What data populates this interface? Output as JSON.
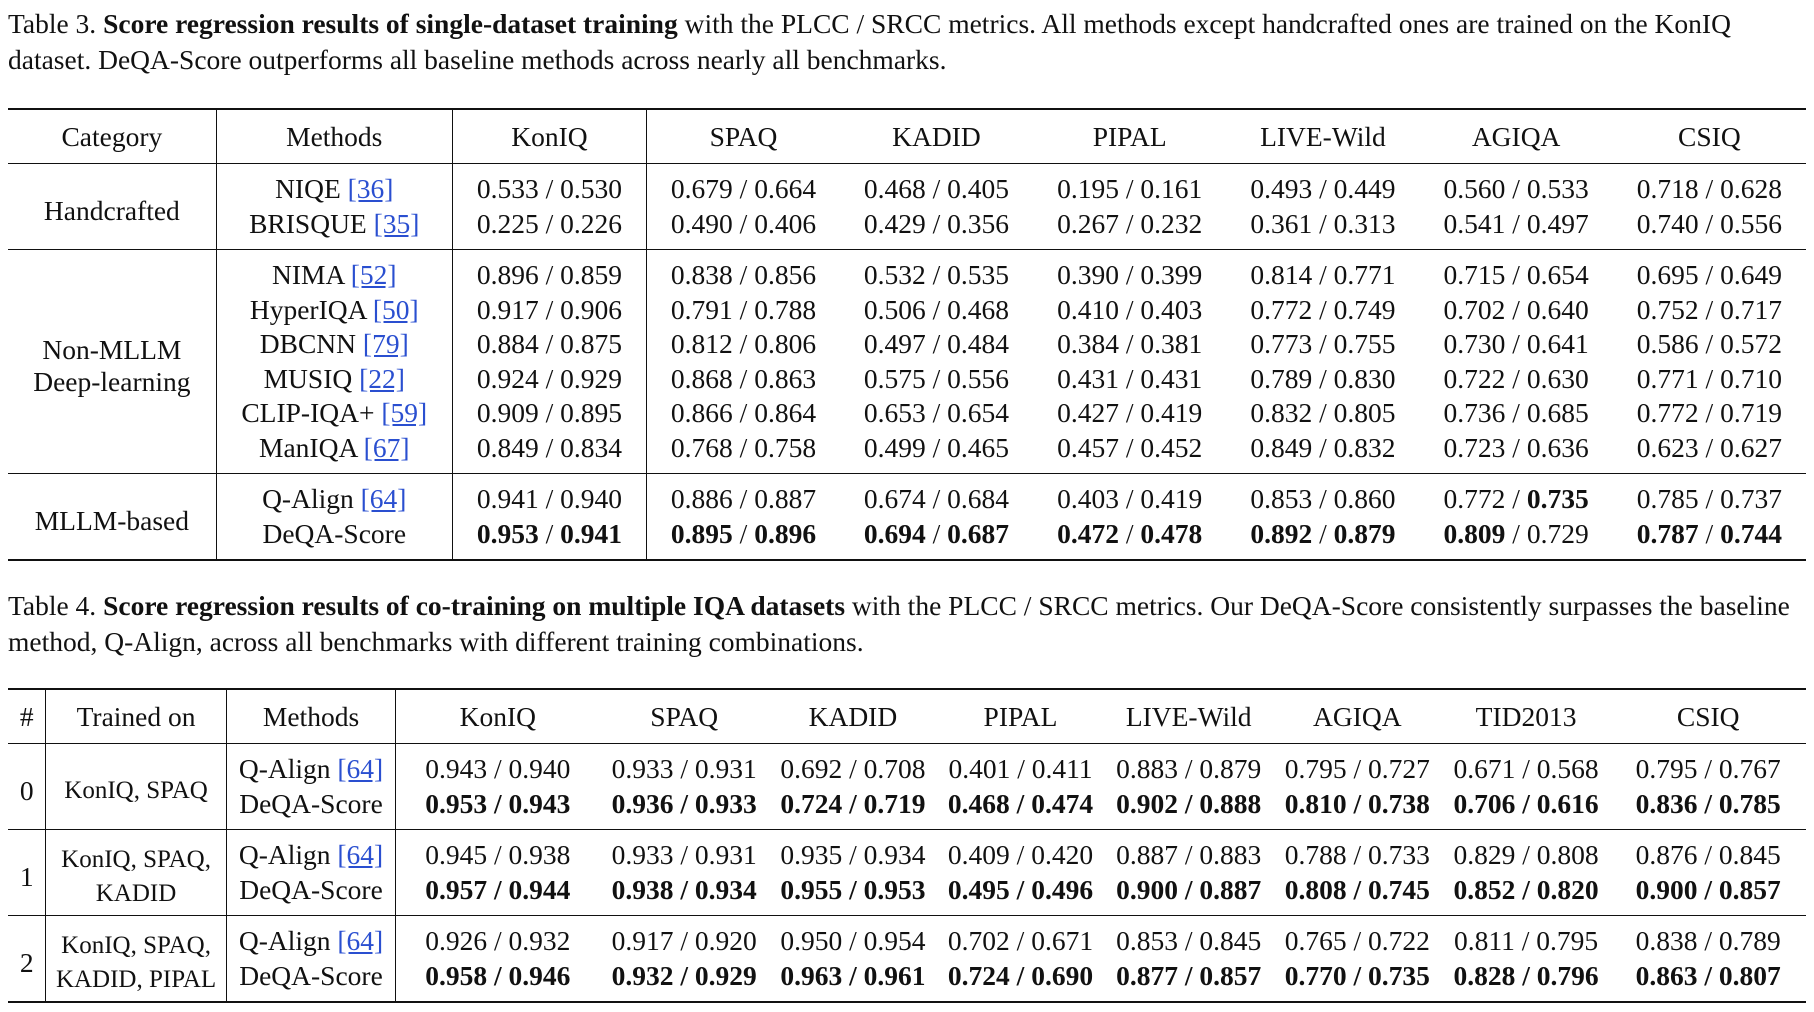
{
  "table3": {
    "caption": {
      "label": "Table 3.",
      "bold": "Score regression results of single-dataset training",
      "rest": "with the PLCC / SRCC metrics. All methods except handcrafted ones are trained on the KonIQ dataset. DeQA-Score outperforms all baseline methods across nearly all benchmarks."
    },
    "headers": [
      "Category",
      "Methods",
      "KonIQ",
      "SPAQ",
      "KADID",
      "PIPAL",
      "LIVE-Wild",
      "AGIQA",
      "CSIQ"
    ],
    "groups": [
      {
        "category": [
          "Handcrafted"
        ],
        "rows": [
          {
            "method": "NIQE",
            "cite": "[36]",
            "cells": [
              [
                "0.533",
                "0.530"
              ],
              [
                "0.679",
                "0.664"
              ],
              [
                "0.468",
                "0.405"
              ],
              [
                "0.195",
                "0.161"
              ],
              [
                "0.493",
                "0.449"
              ],
              [
                "0.560",
                "0.533"
              ],
              [
                "0.718",
                "0.628"
              ]
            ]
          },
          {
            "method": "BRISQUE",
            "cite": "[35]",
            "cells": [
              [
                "0.225",
                "0.226"
              ],
              [
                "0.490",
                "0.406"
              ],
              [
                "0.429",
                "0.356"
              ],
              [
                "0.267",
                "0.232"
              ],
              [
                "0.361",
                "0.313"
              ],
              [
                "0.541",
                "0.497"
              ],
              [
                "0.740",
                "0.556"
              ]
            ]
          }
        ]
      },
      {
        "category": [
          "Non-MLLM",
          "Deep-learning"
        ],
        "rows": [
          {
            "method": "NIMA",
            "cite": "[52]",
            "cells": [
              [
                "0.896",
                "0.859"
              ],
              [
                "0.838",
                "0.856"
              ],
              [
                "0.532",
                "0.535"
              ],
              [
                "0.390",
                "0.399"
              ],
              [
                "0.814",
                "0.771"
              ],
              [
                "0.715",
                "0.654"
              ],
              [
                "0.695",
                "0.649"
              ]
            ]
          },
          {
            "method": "HyperIQA",
            "cite": "[50]",
            "cells": [
              [
                "0.917",
                "0.906"
              ],
              [
                "0.791",
                "0.788"
              ],
              [
                "0.506",
                "0.468"
              ],
              [
                "0.410",
                "0.403"
              ],
              [
                "0.772",
                "0.749"
              ],
              [
                "0.702",
                "0.640"
              ],
              [
                "0.752",
                "0.717"
              ]
            ]
          },
          {
            "method": "DBCNN",
            "cite": "[79]",
            "cells": [
              [
                "0.884",
                "0.875"
              ],
              [
                "0.812",
                "0.806"
              ],
              [
                "0.497",
                "0.484"
              ],
              [
                "0.384",
                "0.381"
              ],
              [
                "0.773",
                "0.755"
              ],
              [
                "0.730",
                "0.641"
              ],
              [
                "0.586",
                "0.572"
              ]
            ]
          },
          {
            "method": "MUSIQ",
            "cite": "[22]",
            "cells": [
              [
                "0.924",
                "0.929"
              ],
              [
                "0.868",
                "0.863"
              ],
              [
                "0.575",
                "0.556"
              ],
              [
                "0.431",
                "0.431"
              ],
              [
                "0.789",
                "0.830"
              ],
              [
                "0.722",
                "0.630"
              ],
              [
                "0.771",
                "0.710"
              ]
            ]
          },
          {
            "method": "CLIP-IQA+",
            "cite": "[59]",
            "cells": [
              [
                "0.909",
                "0.895"
              ],
              [
                "0.866",
                "0.864"
              ],
              [
                "0.653",
                "0.654"
              ],
              [
                "0.427",
                "0.419"
              ],
              [
                "0.832",
                "0.805"
              ],
              [
                "0.736",
                "0.685"
              ],
              [
                "0.772",
                "0.719"
              ]
            ]
          },
          {
            "method": "ManIQA",
            "cite": "[67]",
            "cells": [
              [
                "0.849",
                "0.834"
              ],
              [
                "0.768",
                "0.758"
              ],
              [
                "0.499",
                "0.465"
              ],
              [
                "0.457",
                "0.452"
              ],
              [
                "0.849",
                "0.832"
              ],
              [
                "0.723",
                "0.636"
              ],
              [
                "0.623",
                "0.627"
              ]
            ]
          }
        ]
      },
      {
        "category": [
          "MLLM-based"
        ],
        "rows": [
          {
            "method": "Q-Align",
            "cite": "[64]",
            "cells": [
              [
                "0.941",
                "0.940"
              ],
              [
                "0.886",
                "0.887"
              ],
              [
                "0.674",
                "0.684"
              ],
              [
                "0.403",
                "0.419"
              ],
              [
                "0.853",
                "0.860"
              ],
              [
                "0.772",
                "0.735"
              ],
              [
                "0.785",
                "0.737"
              ]
            ],
            "bold": [
              [
                false,
                false
              ],
              [
                false,
                false
              ],
              [
                false,
                false
              ],
              [
                false,
                false
              ],
              [
                false,
                false
              ],
              [
                false,
                true
              ],
              [
                false,
                false
              ]
            ]
          },
          {
            "method": "DeQA-Score",
            "cite": "",
            "cells": [
              [
                "0.953",
                "0.941"
              ],
              [
                "0.895",
                "0.896"
              ],
              [
                "0.694",
                "0.687"
              ],
              [
                "0.472",
                "0.478"
              ],
              [
                "0.892",
                "0.879"
              ],
              [
                "0.809",
                "0.729"
              ],
              [
                "0.787",
                "0.744"
              ]
            ],
            "bold": [
              [
                true,
                true
              ],
              [
                true,
                true
              ],
              [
                true,
                true
              ],
              [
                true,
                true
              ],
              [
                true,
                true
              ],
              [
                true,
                false
              ],
              [
                true,
                true
              ]
            ]
          }
        ]
      }
    ]
  },
  "table4": {
    "caption": {
      "label": "Table 4.",
      "bold": "Score regression results of co-training on multiple IQA datasets",
      "rest": "with the PLCC / SRCC metrics. Our DeQA-Score consistently surpasses the baseline method, Q-Align, across all benchmarks with different training combinations."
    },
    "headers": [
      "#",
      "Trained on",
      "Methods",
      "KonIQ",
      "SPAQ",
      "KADID",
      "PIPAL",
      "LIVE-Wild",
      "AGIQA",
      "TID2013",
      "CSIQ"
    ],
    "groups": [
      {
        "index": "0",
        "trained_on": [
          "KonIQ, SPAQ"
        ],
        "rows": [
          {
            "method": "Q-Align",
            "cite": "[64]",
            "bold": false,
            "cells": [
              [
                "0.943",
                "0.940"
              ],
              [
                "0.933",
                "0.931"
              ],
              [
                "0.692",
                "0.708"
              ],
              [
                "0.401",
                "0.411"
              ],
              [
                "0.883",
                "0.879"
              ],
              [
                "0.795",
                "0.727"
              ],
              [
                "0.671",
                "0.568"
              ],
              [
                "0.795",
                "0.767"
              ]
            ]
          },
          {
            "method": "DeQA-Score",
            "cite": "",
            "bold": true,
            "cells": [
              [
                "0.953",
                "0.943"
              ],
              [
                "0.936",
                "0.933"
              ],
              [
                "0.724",
                "0.719"
              ],
              [
                "0.468",
                "0.474"
              ],
              [
                "0.902",
                "0.888"
              ],
              [
                "0.810",
                "0.738"
              ],
              [
                "0.706",
                "0.616"
              ],
              [
                "0.836",
                "0.785"
              ]
            ]
          }
        ]
      },
      {
        "index": "1",
        "trained_on": [
          "KonIQ, SPAQ,",
          "KADID"
        ],
        "rows": [
          {
            "method": "Q-Align",
            "cite": "[64]",
            "bold": false,
            "cells": [
              [
                "0.945",
                "0.938"
              ],
              [
                "0.933",
                "0.931"
              ],
              [
                "0.935",
                "0.934"
              ],
              [
                "0.409",
                "0.420"
              ],
              [
                "0.887",
                "0.883"
              ],
              [
                "0.788",
                "0.733"
              ],
              [
                "0.829",
                "0.808"
              ],
              [
                "0.876",
                "0.845"
              ]
            ]
          },
          {
            "method": "DeQA-Score",
            "cite": "",
            "bold": true,
            "cells": [
              [
                "0.957",
                "0.944"
              ],
              [
                "0.938",
                "0.934"
              ],
              [
                "0.955",
                "0.953"
              ],
              [
                "0.495",
                "0.496"
              ],
              [
                "0.900",
                "0.887"
              ],
              [
                "0.808",
                "0.745"
              ],
              [
                "0.852",
                "0.820"
              ],
              [
                "0.900",
                "0.857"
              ]
            ]
          }
        ]
      },
      {
        "index": "2",
        "trained_on": [
          "KonIQ, SPAQ,",
          "KADID, PIPAL"
        ],
        "rows": [
          {
            "method": "Q-Align",
            "cite": "[64]",
            "bold": false,
            "cells": [
              [
                "0.926",
                "0.932"
              ],
              [
                "0.917",
                "0.920"
              ],
              [
                "0.950",
                "0.954"
              ],
              [
                "0.702",
                "0.671"
              ],
              [
                "0.853",
                "0.845"
              ],
              [
                "0.765",
                "0.722"
              ],
              [
                "0.811",
                "0.795"
              ],
              [
                "0.838",
                "0.789"
              ]
            ]
          },
          {
            "method": "DeQA-Score",
            "cite": "",
            "bold": true,
            "cells": [
              [
                "0.958",
                "0.946"
              ],
              [
                "0.932",
                "0.929"
              ],
              [
                "0.963",
                "0.961"
              ],
              [
                "0.724",
                "0.690"
              ],
              [
                "0.877",
                "0.857"
              ],
              [
                "0.770",
                "0.735"
              ],
              [
                "0.828",
                "0.796"
              ],
              [
                "0.863",
                "0.807"
              ]
            ]
          }
        ]
      }
    ]
  }
}
